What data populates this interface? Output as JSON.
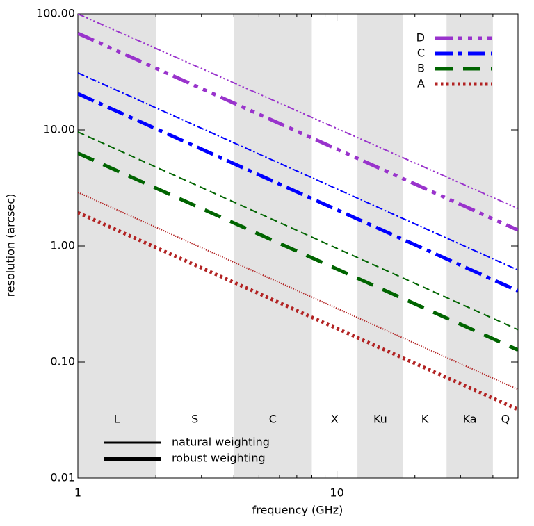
{
  "chart_data": {
    "type": "line",
    "x_label": "frequency (GHz)",
    "y_label": "resolution (arcsec)",
    "log_x": true,
    "log_y": true,
    "xlim": [
      1,
      50
    ],
    "ylim": [
      0.01,
      100
    ],
    "xticks": [
      1,
      10
    ],
    "xminorticks": [
      2,
      3,
      4,
      5,
      6,
      7,
      8,
      9,
      20,
      30,
      40,
      50
    ],
    "yticks": [
      {
        "value": 0.01,
        "label": "0.01"
      },
      {
        "value": 0.1,
        "label": "0.10"
      },
      {
        "value": 1,
        "label": "1.00"
      },
      {
        "value": 10,
        "label": "10.00"
      },
      {
        "value": 100,
        "label": "100.00"
      }
    ],
    "band_color": "#e3e3e3",
    "bands": [
      {
        "name": "L",
        "range": [
          1,
          2
        ],
        "shaded": true
      },
      {
        "name": "S",
        "range": [
          2,
          4
        ],
        "shaded": false
      },
      {
        "name": "C",
        "range": [
          4,
          8
        ],
        "shaded": true
      },
      {
        "name": "X",
        "range": [
          8,
          12
        ],
        "shaded": false
      },
      {
        "name": "Ku",
        "range": [
          12,
          18
        ],
        "shaded": true
      },
      {
        "name": "K",
        "range": [
          18,
          26.5
        ],
        "shaded": false
      },
      {
        "name": "Ka",
        "range": [
          26.5,
          40
        ],
        "shaded": true
      },
      {
        "name": "Q",
        "range": [
          40,
          50
        ],
        "shaded": false
      }
    ],
    "x": [
      1,
      50
    ],
    "series": [
      {
        "name": "D",
        "color": "#9933cc",
        "style": "dash-dot-dot-dot",
        "natural": [
          100,
          2.1
        ],
        "robust": [
          68,
          1.37
        ]
      },
      {
        "name": "C",
        "color": "#0000ff",
        "style": "dash-dot",
        "natural": [
          31,
          0.62
        ],
        "robust": [
          20.5,
          0.41
        ]
      },
      {
        "name": "B",
        "color": "#006400",
        "style": "dashed",
        "natural": [
          9.6,
          0.19
        ],
        "robust": [
          6.3,
          0.127
        ]
      },
      {
        "name": "A",
        "color": "#b22222",
        "style": "dotted",
        "natural": [
          2.9,
          0.058
        ],
        "robust": [
          1.94,
          0.039
        ]
      }
    ],
    "weightings": [
      "natural weighting",
      "robust weighting"
    ],
    "legend": "top-right"
  }
}
